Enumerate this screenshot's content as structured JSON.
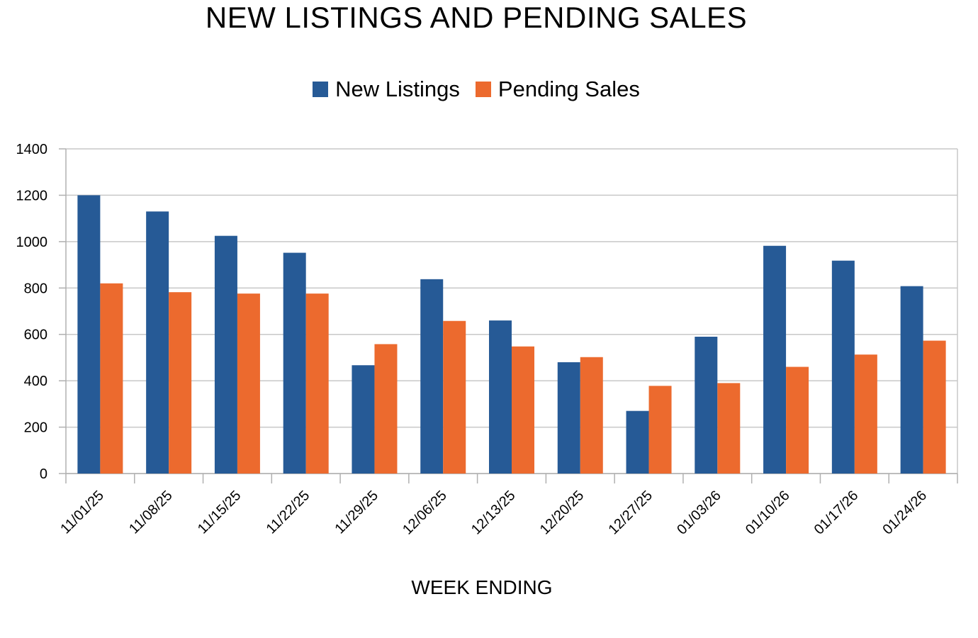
{
  "chart_data": {
    "type": "bar",
    "title": "NEW LISTINGS AND PENDING SALES",
    "xlabel": "WEEK ENDING",
    "ylabel": "",
    "ylim": [
      0,
      1400
    ],
    "yticks": [
      "0",
      "200",
      "400",
      "600",
      "800",
      "1000",
      "1200",
      "1400"
    ],
    "grid": true,
    "legend_position": "top",
    "categories": [
      "11/01/25",
      "11/08/25",
      "11/15/25",
      "11/22/25",
      "11/29/25",
      "12/06/25",
      "12/13/25",
      "12/20/25",
      "12/27/25",
      "01/03/26",
      "01/10/26",
      "01/17/26",
      "01/24/26"
    ],
    "series": [
      {
        "name": "New Listings",
        "color": "#265a96",
        "values": [
          1200,
          1130,
          1025,
          952,
          467,
          838,
          660,
          480,
          270,
          590,
          982,
          918,
          808
        ]
      },
      {
        "name": "Pending Sales",
        "color": "#ec6a2e",
        "values": [
          820,
          782,
          776,
          776,
          558,
          658,
          548,
          502,
          378,
          390,
          460,
          513,
          573
        ]
      }
    ]
  }
}
